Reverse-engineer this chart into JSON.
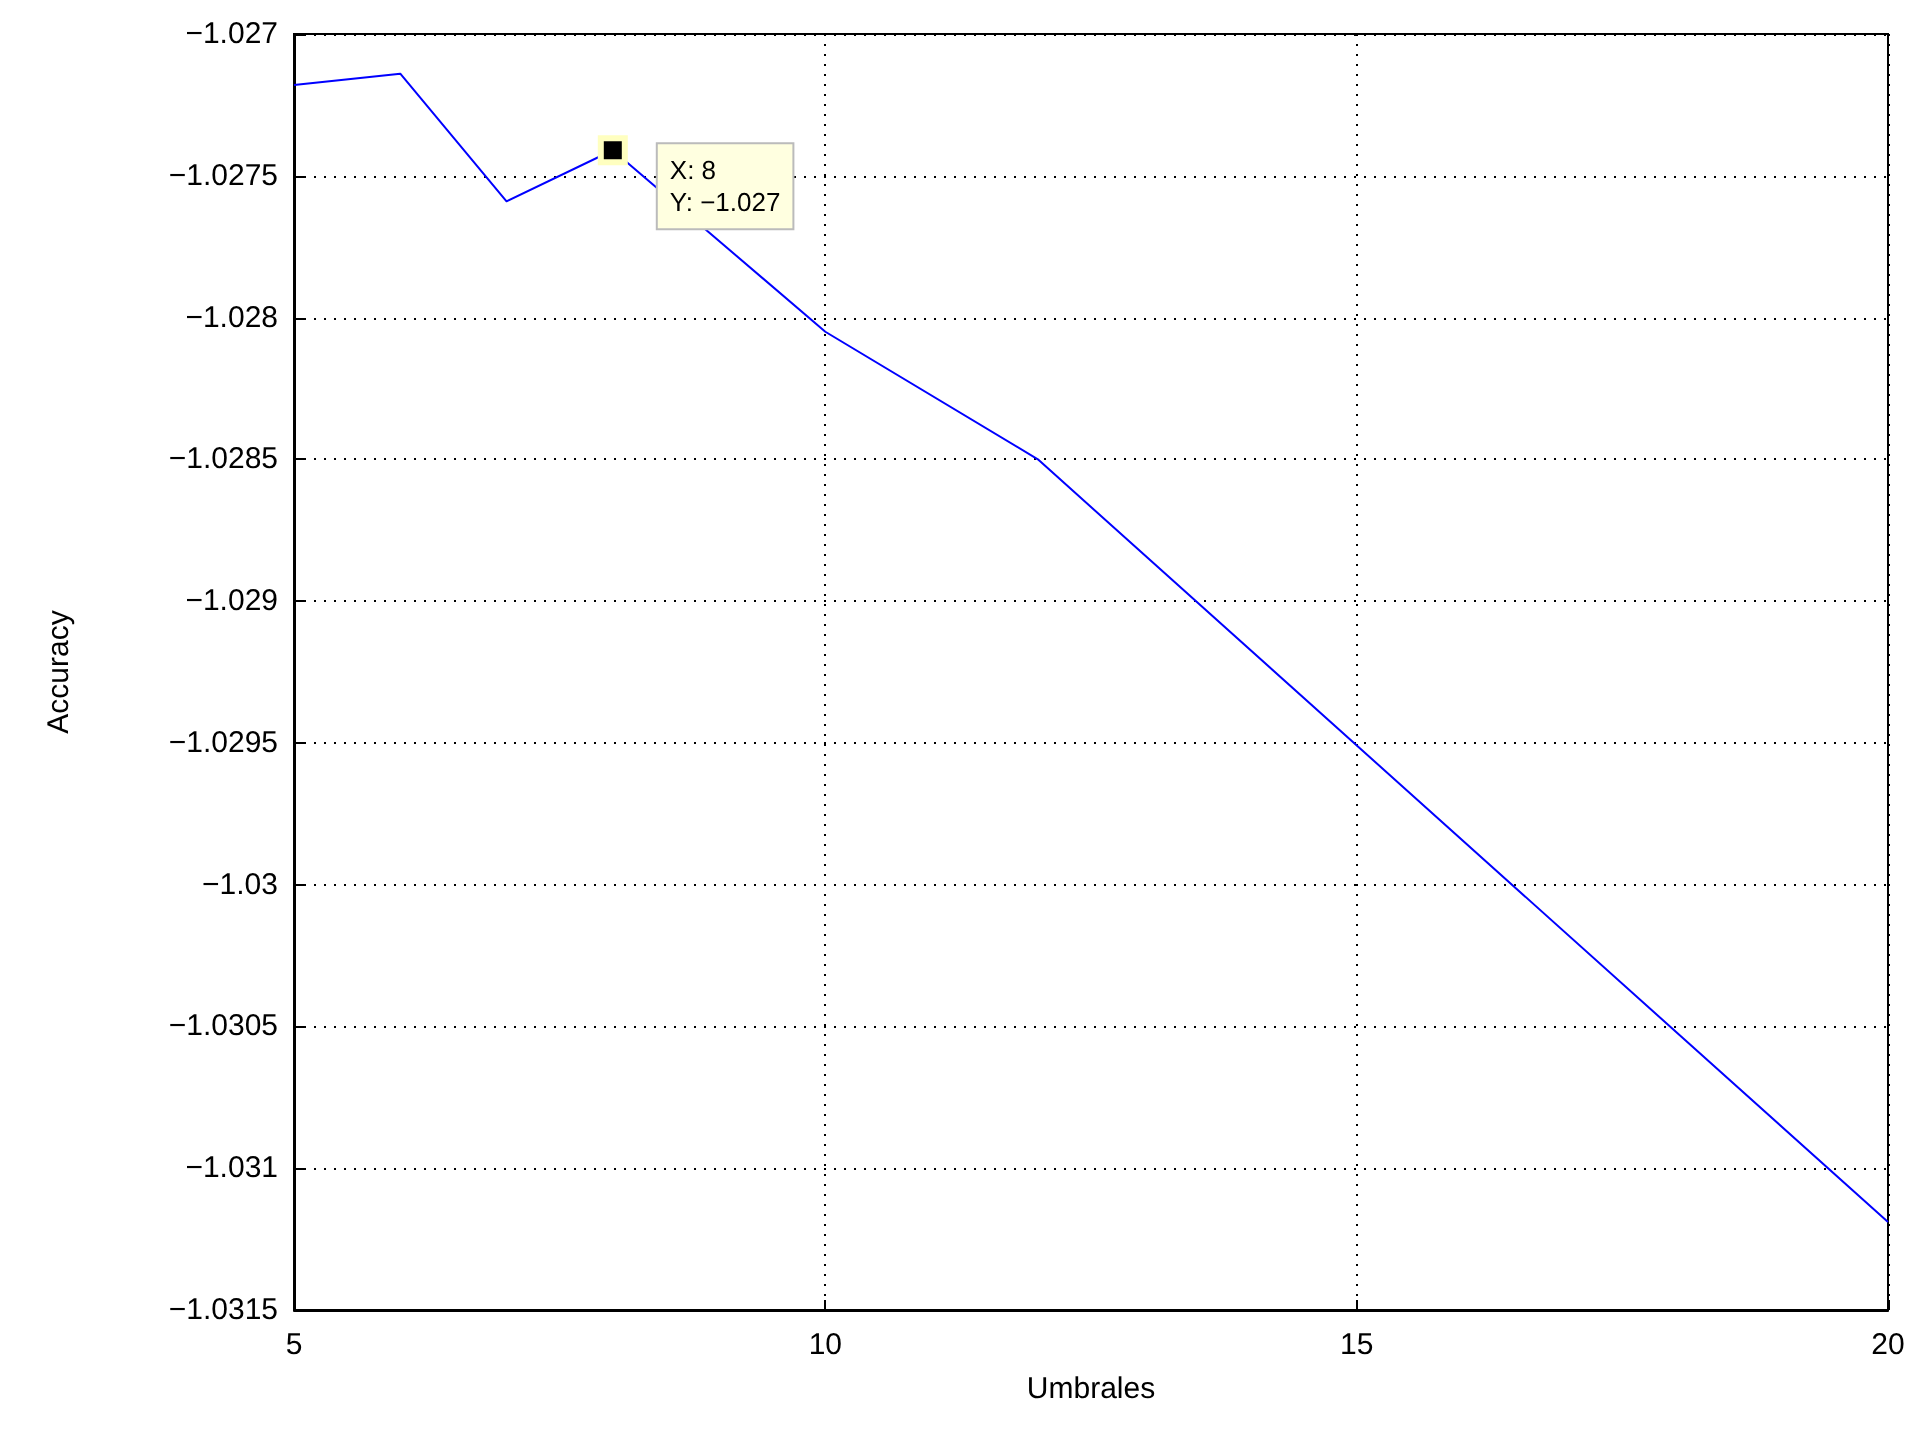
{
  "chart_data": {
    "type": "line",
    "xlabel": "Umbrales",
    "ylabel": "Accuracy",
    "x": [
      5,
      6,
      7,
      8,
      10,
      12,
      20
    ],
    "series": [
      {
        "color": "#0000ff",
        "values": [
          -1.02718,
          -1.02714,
          -1.02759,
          -1.02741,
          -1.02805,
          -1.0285,
          -1.03119
        ]
      }
    ],
    "xlim": [
      5,
      20
    ],
    "xticks": [
      5,
      10,
      15,
      20
    ],
    "ylim": [
      -1.0315,
      -1.027
    ],
    "yticks": [
      -1.0315,
      -1.031,
      -1.0305,
      -1.03,
      -1.0295,
      -1.029,
      -1.0285,
      -1.028,
      -1.0275,
      -1.027
    ],
    "grid": true,
    "line_style": "solid",
    "marker": "none",
    "annotations": [
      {
        "text": "X: 8\nY: −1.027",
        "x": 8,
        "y": -1.02741
      }
    ]
  }
}
